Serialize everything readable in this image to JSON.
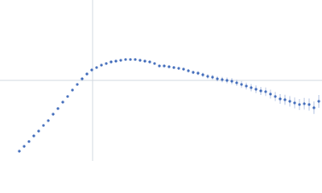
{
  "chart_data": {
    "type": "scatter",
    "color": "#3a66b8",
    "grid_color": "#cdd5de",
    "xlim": [
      0,
      400
    ],
    "ylim": [
      0,
      200
    ],
    "xticks": [
      115
    ],
    "yticks": [
      100
    ],
    "series": [
      {
        "x": [
          24,
          30,
          36,
          42,
          48,
          54,
          60,
          66,
          72,
          78,
          84,
          90,
          96,
          102,
          108,
          114,
          120,
          126,
          132,
          138,
          144,
          150,
          156,
          162,
          168,
          174,
          180,
          186,
          192,
          198,
          204,
          210,
          216,
          222,
          228,
          234,
          240,
          246,
          252,
          258,
          264,
          270,
          276,
          282,
          288,
          294,
          300,
          306,
          312,
          318,
          324,
          330,
          336,
          342,
          348,
          354,
          360,
          366,
          372,
          378,
          384,
          390,
          396
        ],
        "values": [
          12,
          18,
          24,
          31,
          37,
          44,
          50,
          58,
          65,
          73,
          80,
          88,
          95,
          102,
          108,
          113,
          116,
          119,
          121,
          123,
          124,
          125,
          126,
          126,
          126,
          125,
          124,
          123,
          121,
          118,
          118,
          117,
          116,
          115,
          114,
          112,
          110,
          109,
          107,
          105,
          104,
          102,
          101,
          100,
          99,
          97,
          95,
          93,
          91,
          89,
          87,
          86,
          83,
          80,
          77,
          76,
          74,
          72,
          70,
          71,
          70,
          66,
          74
        ],
        "errors": [
          0.5,
          0.5,
          0.5,
          0.5,
          0.5,
          0.5,
          0.5,
          0.5,
          0.5,
          0.5,
          0.5,
          0.5,
          0.5,
          0.5,
          0.5,
          0.5,
          0.6,
          0.6,
          0.6,
          0.7,
          0.7,
          0.8,
          0.8,
          0.9,
          0.9,
          1,
          1,
          1.1,
          1.2,
          1.3,
          1.4,
          1.5,
          1.6,
          1.7,
          1.8,
          2,
          2.1,
          2.3,
          2.5,
          2.7,
          2.9,
          3.1,
          3.3,
          3.5,
          3.7,
          3.9,
          4.1,
          4.3,
          4.5,
          4.8,
          5,
          5.3,
          5.5,
          5.8,
          6,
          6.3,
          6.5,
          6.8,
          7,
          7.3,
          7.5,
          7.8,
          8
        ]
      }
    ]
  }
}
